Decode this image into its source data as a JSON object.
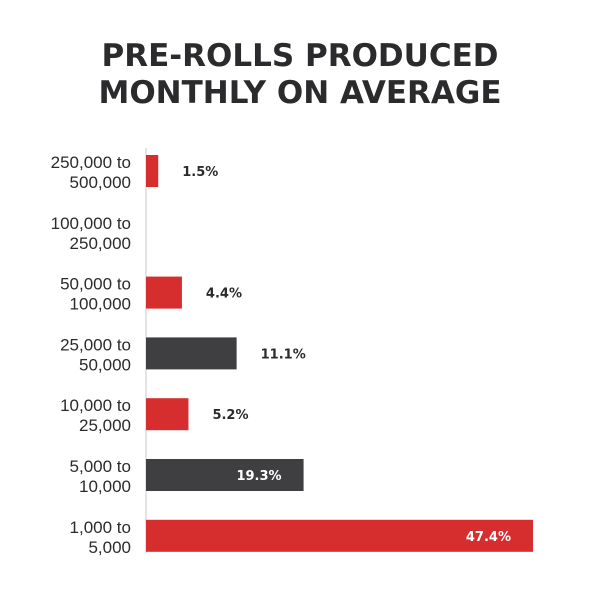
{
  "chart_data": {
    "type": "bar",
    "orientation": "horizontal",
    "title": [
      "PRE-ROLLS PRODUCED",
      "MONTHLY ON AVERAGE"
    ],
    "categories": [
      [
        "250,000 to",
        "500,000"
      ],
      [
        "100,000 to",
        "250,000"
      ],
      [
        "50,000 to",
        "100,000"
      ],
      [
        "25,000 to",
        "50,000"
      ],
      [
        "10,000 to",
        "25,000"
      ],
      [
        "5,000 to",
        "10,000"
      ],
      [
        "1,000 to",
        "5,000"
      ]
    ],
    "values": [
      1.5,
      null,
      4.4,
      11.1,
      5.2,
      19.3,
      47.4
    ],
    "labels": [
      "1.5%",
      "",
      "4.4%",
      "11.1%",
      "5.2%",
      "19.3%",
      "47.4%"
    ],
    "colors": [
      "#d62d2f",
      "#d62d2f",
      "#d62d2f",
      "#3f3f42",
      "#d62d2f",
      "#3f3f42",
      "#d62d2f"
    ],
    "xlim": [
      0,
      47.4
    ],
    "grid": false,
    "xlabel": "",
    "ylabel": ""
  }
}
